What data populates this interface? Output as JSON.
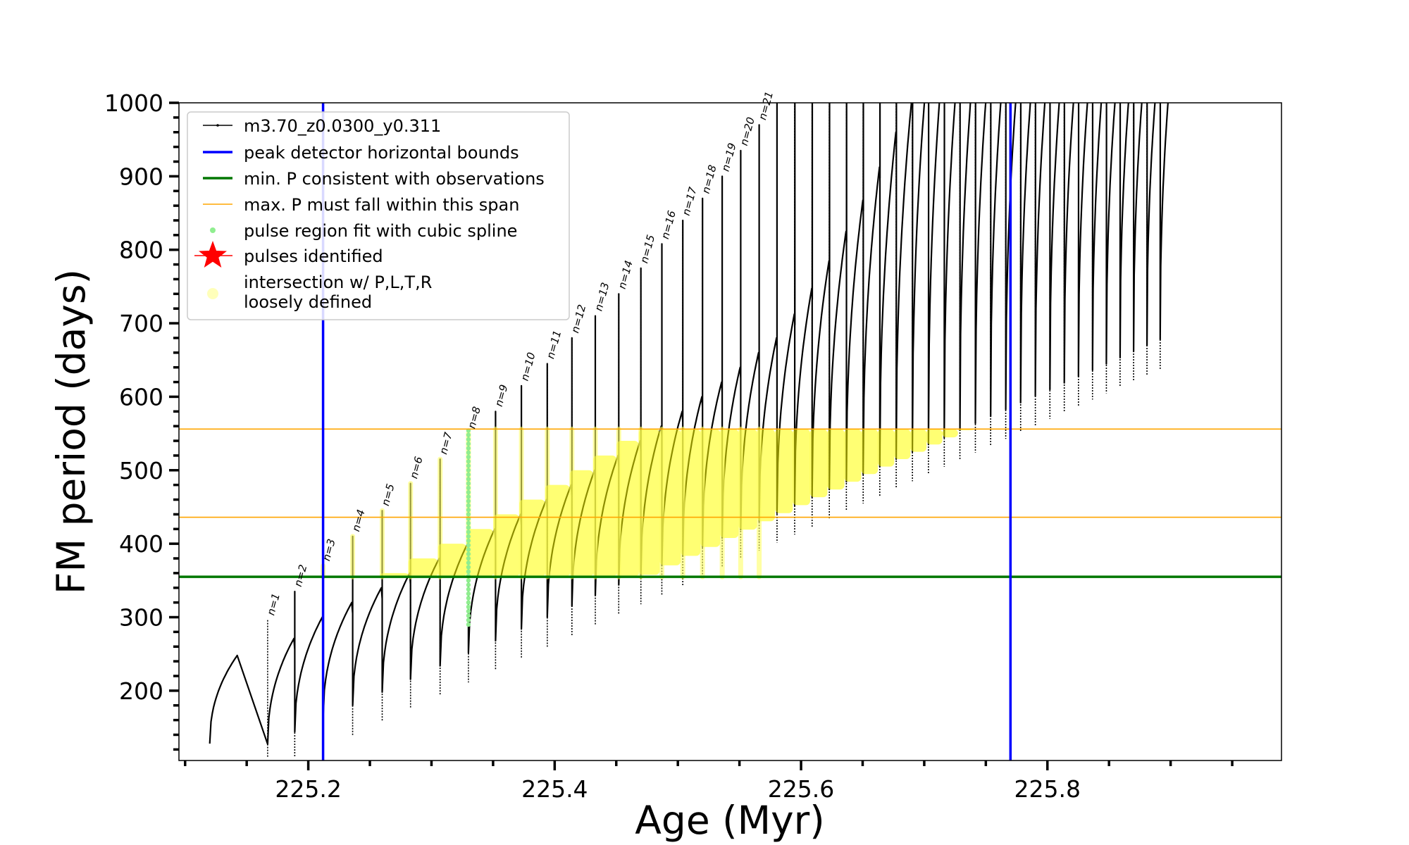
{
  "chart_data": {
    "type": "line",
    "title": "",
    "xlabel": "Age (Myr)",
    "ylabel": "FM period (days)",
    "xlim": [
      225.095,
      225.99
    ],
    "ylim": [
      105,
      1000
    ],
    "x_ticks": [
      "225.2",
      "225.4",
      "225.6",
      "225.8"
    ],
    "y_ticks": [
      "200",
      "300",
      "400",
      "500",
      "600",
      "700",
      "800",
      "900",
      "1000"
    ],
    "grid": false,
    "legend_position": "top-left",
    "series": [
      {
        "name": "m3.70_z0.0300_y0.311",
        "color": "#000000",
        "style": "line-with-small-markers"
      },
      {
        "name": "peak detector horizontal bounds",
        "color": "#0000ff",
        "x_values": [
          225.212,
          225.77
        ]
      },
      {
        "name": "min. P consistent with observations",
        "color": "#007700",
        "y_value": 355
      },
      {
        "name": "max. P must fall within this span",
        "color": "#ffa500",
        "y_values": [
          436,
          556
        ]
      },
      {
        "name": "pulse region fit with cubic spline",
        "color": "#90ee90"
      },
      {
        "name": "pulses identified",
        "color": "#ff0000"
      },
      {
        "name": "intersection w/ P,L,T,R\nloosely defined",
        "color": "#ffff66"
      }
    ],
    "legend": [
      {
        "label": "m3.70_z0.0300_y0.311",
        "marker": "black-line"
      },
      {
        "label": "peak detector horizontal bounds",
        "marker": "blue-line"
      },
      {
        "label": "min. P consistent with observations",
        "marker": "green-line"
      },
      {
        "label": "max. P must fall within this span",
        "marker": "orange-line"
      },
      {
        "label": "pulse region fit with cubic spline",
        "marker": "lightgreen-dot"
      },
      {
        "label": "pulses identified",
        "marker": "red-star"
      },
      {
        "label_line1": "intersection w/ P,L,T,R",
        "label_line2": "loosely defined",
        "marker": "yellow-dot"
      }
    ],
    "pulses": [
      {
        "n": "n=1",
        "x": 225.167,
        "peak": 296
      },
      {
        "n": "n=2",
        "x": 225.189,
        "peak": 335
      },
      {
        "n": "n=3",
        "x": 225.212,
        "peak": 370
      },
      {
        "n": "n=4",
        "x": 225.236,
        "peak": 410
      },
      {
        "n": "n=5",
        "x": 225.26,
        "peak": 445
      },
      {
        "n": "n=6",
        "x": 225.283,
        "peak": 482
      },
      {
        "n": "n=7",
        "x": 225.307,
        "peak": 515
      },
      {
        "n": "n=8",
        "x": 225.33,
        "peak": 550
      },
      {
        "n": "n=9",
        "x": 225.352,
        "peak": 580
      },
      {
        "n": "n=10",
        "x": 225.373,
        "peak": 615
      },
      {
        "n": "n=11",
        "x": 225.394,
        "peak": 645
      },
      {
        "n": "n=12",
        "x": 225.414,
        "peak": 680
      },
      {
        "n": "n=13",
        "x": 225.433,
        "peak": 710
      },
      {
        "n": "n=14",
        "x": 225.452,
        "peak": 740
      },
      {
        "n": "n=15",
        "x": 225.47,
        "peak": 775
      },
      {
        "n": "n=16",
        "x": 225.487,
        "peak": 808
      },
      {
        "n": "n=17",
        "x": 225.504,
        "peak": 840
      },
      {
        "n": "n=18",
        "x": 225.52,
        "peak": 870
      },
      {
        "n": "n=19",
        "x": 225.536,
        "peak": 900
      },
      {
        "n": "n=20",
        "x": 225.551,
        "peak": 935
      },
      {
        "n": "n=21",
        "x": 225.566,
        "peak": 970
      }
    ]
  }
}
